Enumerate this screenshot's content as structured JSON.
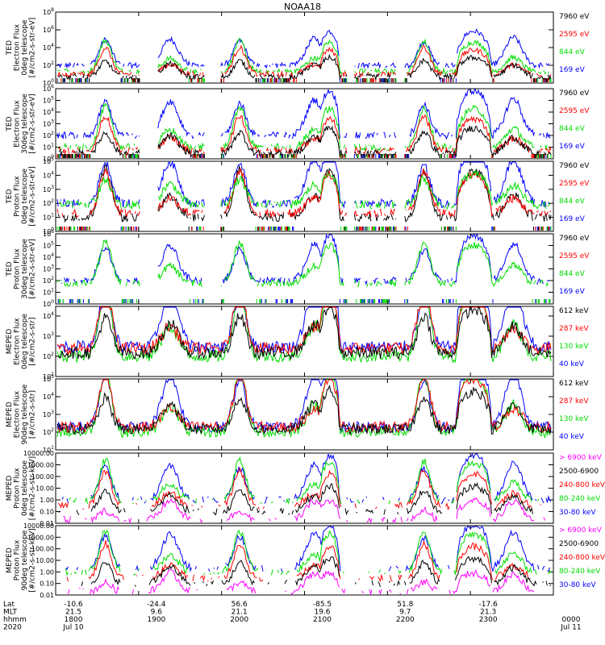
{
  "title": "NOAA18",
  "time_axis": {
    "row_labels": [
      "Lat",
      "MLT",
      "hhmm",
      "2020"
    ],
    "ticks": [
      {
        "lat": "-10.6",
        "mlt": "21.5",
        "hhmm": "1800",
        "date": "Jul 10"
      },
      {
        "lat": "-24.4",
        "mlt": "9.6",
        "hhmm": "1900",
        "date": ""
      },
      {
        "lat": "56.6",
        "mlt": "21.1",
        "hhmm": "2000",
        "date": ""
      },
      {
        "lat": "-85.5",
        "mlt": "19.6",
        "hhmm": "2100",
        "date": ""
      },
      {
        "lat": "51.8",
        "mlt": "9.7",
        "hhmm": "2200",
        "date": ""
      },
      {
        "lat": "-17.6",
        "mlt": "21.3",
        "hhmm": "2300",
        "date": ""
      },
      {
        "lat": "",
        "mlt": "",
        "hhmm": "0000",
        "date": "Jul 11"
      }
    ]
  },
  "chart_data": [
    {
      "type": "line",
      "scale": "log",
      "ylabel": [
        "TED",
        "Electron Flux",
        "0deg telescope",
        "[#/cm2-s-str-eV]"
      ],
      "yticks": [
        "10^0",
        "10^2",
        "10^4",
        "10^6",
        "10^8"
      ],
      "ylim": [
        1,
        100000000
      ],
      "legend": [
        "7960 eV",
        "2595 eV",
        "844 eV",
        "169 eV"
      ],
      "profile": "ted_e0",
      "series": [
        {
          "name": "169 eV",
          "color": "#0000ff",
          "typical": 100
        },
        {
          "name": "844 eV",
          "color": "#00dd00",
          "typical": 20
        },
        {
          "name": "2595 eV",
          "color": "#ff0000",
          "typical": 10
        },
        {
          "name": "7960 eV",
          "color": "#000000",
          "typical": 5
        }
      ]
    },
    {
      "type": "line",
      "scale": "log",
      "ylabel": [
        "TED",
        "Electron Flux",
        "30deg telescope",
        "[#/cm2-s-str-eV]"
      ],
      "yticks": [
        "10^0",
        "10^1",
        "10^2",
        "10^3",
        "10^4",
        "10^5",
        "10^6"
      ],
      "ylim": [
        1,
        1000000
      ],
      "legend": [
        "7960 eV",
        "2595 eV",
        "844 eV",
        "169 eV"
      ],
      "profile": "ted_e30",
      "series": [
        {
          "name": "169 eV",
          "color": "#0000ff",
          "typical": 100
        },
        {
          "name": "844 eV",
          "color": "#00dd00",
          "typical": 10
        },
        {
          "name": "2595 eV",
          "color": "#ff0000",
          "typical": 5
        },
        {
          "name": "7960 eV",
          "color": "#000000",
          "typical": 3
        }
      ]
    },
    {
      "type": "line",
      "scale": "log",
      "ylabel": [
        "TED",
        "Proton Flux",
        "0deg telescope",
        "[#/cm2-s-str-eV]"
      ],
      "yticks": [
        "10^0",
        "10^1",
        "10^2",
        "10^3",
        "10^4",
        "10^5"
      ],
      "ylim": [
        1,
        100000
      ],
      "legend": [
        "7960 eV",
        "2595 eV",
        "844 eV",
        "169 eV"
      ],
      "profile": "ted_p0",
      "series": [
        {
          "name": "169 eV",
          "color": "#0000ff",
          "typical": 100
        },
        {
          "name": "7960 eV",
          "color": "#000000",
          "typical": 10
        },
        {
          "name": "2595 eV",
          "color": "#ff0000",
          "typical": 20
        },
        {
          "name": "844 eV",
          "color": "#00dd00",
          "typical": 80
        }
      ]
    },
    {
      "type": "line",
      "scale": "log",
      "ylabel": [
        "TED",
        "Proton Flux",
        "30deg telescope",
        "[#/cm2-s-str-eV]"
      ],
      "yticks": [
        "10^0",
        "10^1",
        "10^2",
        "10^3",
        "10^4",
        "10^5",
        "10^6"
      ],
      "ylim": [
        1,
        1000000
      ],
      "legend": [
        "7960 eV",
        "2595 eV",
        "844 eV",
        "169 eV"
      ],
      "profile": "ted_p30",
      "series": [
        {
          "name": "169 eV",
          "color": "#0000ff",
          "typical": 100
        },
        {
          "name": "844 eV",
          "color": "#00dd00",
          "typical": 60
        }
      ]
    },
    {
      "type": "line",
      "scale": "log",
      "ylabel": [
        "MEPED",
        "Electron Flux",
        "0deg telescope",
        "[#/cm2-s-str]"
      ],
      "yticks": [
        "10^1",
        "10^2",
        "10^3",
        "10^4"
      ],
      "ylim": [
        10,
        30000
      ],
      "legend": [
        "612 keV",
        "287 keV",
        "130 keV",
        "40 keV"
      ],
      "profile": "meped_e0",
      "series": [
        {
          "name": "40 keV",
          "color": "#0000ff",
          "typical": 300
        },
        {
          "name": "130 keV",
          "color": "#00dd00",
          "typical": 100
        },
        {
          "name": "287 keV",
          "color": "#ff0000",
          "typical": 250
        },
        {
          "name": "612 keV",
          "color": "#000000",
          "typical": 150
        }
      ]
    },
    {
      "type": "line",
      "scale": "log",
      "ylabel": [
        "MEPED",
        "Electron Flux",
        "90deg telescope",
        "[#/cm2-s-str]"
      ],
      "yticks": [
        "10^1",
        "10^2",
        "10^3",
        "10^4",
        "10^5"
      ],
      "ylim": [
        10,
        100000
      ],
      "legend": [
        "612 keV",
        "287 keV",
        "130 keV",
        "40 keV"
      ],
      "profile": "meped_e90",
      "series": [
        {
          "name": "40 keV",
          "color": "#0000ff",
          "typical": 200
        },
        {
          "name": "130 keV",
          "color": "#00dd00",
          "typical": 100
        },
        {
          "name": "287 keV",
          "color": "#ff0000",
          "typical": 200
        },
        {
          "name": "612 keV",
          "color": "#000000",
          "typical": 150
        }
      ]
    },
    {
      "type": "line",
      "scale": "log",
      "ylabel": [
        "MEPED",
        "Proton Flux",
        "0deg telescope",
        "[#/cm2-s-str-keV]"
      ],
      "yticks": [
        "0.01",
        "0.10",
        "1.00",
        "10.00",
        "100.00",
        "1000.00",
        "10000.00"
      ],
      "ylim": [
        0.01,
        10000
      ],
      "legend": [
        "> 6900 keV",
        "2500-6900",
        "240-800 keV",
        "80-240 keV",
        "30-80 keV"
      ],
      "profile": "meped_p0",
      "series": [
        {
          "name": "30-80 keV",
          "color": "#0000ff",
          "typical": 1
        },
        {
          "name": "80-240 keV",
          "color": "#00dd00",
          "typical": 0.8
        },
        {
          "name": "240-800 keV",
          "color": "#ff0000",
          "typical": 0.3
        },
        {
          "name": "2500-6900",
          "color": "#000000",
          "typical": 0.1
        },
        {
          "name": "> 6900 keV",
          "color": "#ff00ff",
          "typical": 0.02
        }
      ]
    },
    {
      "type": "line",
      "scale": "log",
      "ylabel": [
        "MEPED",
        "Proton Flux",
        "90deg telescope",
        "[#/cm2-s-str-keV]"
      ],
      "yticks": [
        "0.01",
        "0.10",
        "1.00",
        "10.00",
        "100.00",
        "1000.00",
        "10000.00"
      ],
      "ylim": [
        0.01,
        10000
      ],
      "legend": [
        "> 6900 keV",
        "2500-6900",
        "240-800 keV",
        "80-240 keV",
        "30-80 keV"
      ],
      "profile": "meped_p90",
      "series": [
        {
          "name": "30-80 keV",
          "color": "#0000ff",
          "typical": 2
        },
        {
          "name": "80-240 keV",
          "color": "#00dd00",
          "typical": 1
        },
        {
          "name": "240-800 keV",
          "color": "#ff0000",
          "typical": 0.3
        },
        {
          "name": "2500-6900",
          "color": "#000000",
          "typical": 0.1
        },
        {
          "name": "> 6900 keV",
          "color": "#ff00ff",
          "typical": 0.02
        }
      ]
    }
  ],
  "legend_colors": {
    "7960 eV": "#000000",
    "2595 eV": "#ff0000",
    "844 eV": "#00dd00",
    "169 eV": "#0000ff",
    "612 keV": "#000000",
    "287 keV": "#ff0000",
    "130 keV": "#00dd00",
    "40 keV": "#0000ff",
    "> 6900 keV": "#ff00ff",
    "2500-6900": "#000000",
    "240-800 keV": "#ff0000",
    "80-240 keV": "#00dd00",
    "30-80 keV": "#0000ff"
  }
}
